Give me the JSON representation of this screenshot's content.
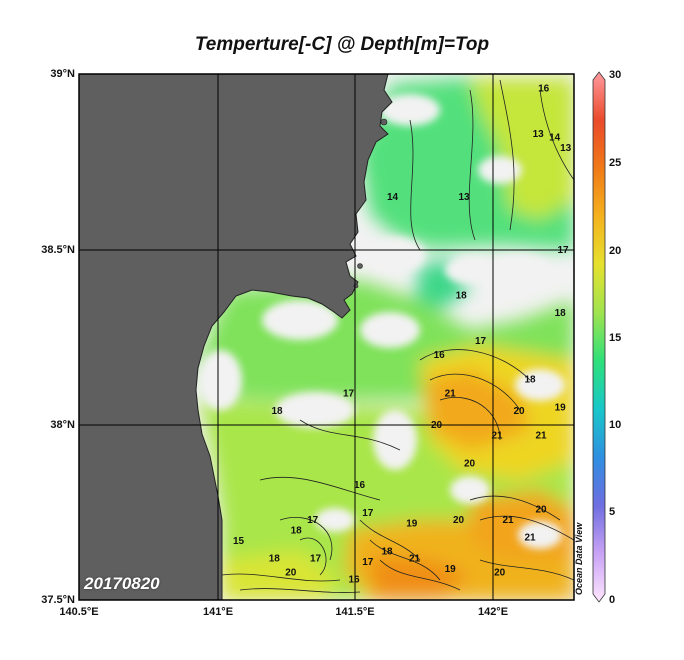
{
  "title": "Temperture[-C] @ Depth[m]=Top",
  "date_label": "20170820",
  "brand": "Ocean Data View",
  "map": {
    "lon_ticks": [
      "140.5°E",
      "141°E",
      "141.5°E",
      "142°E"
    ],
    "lat_ticks": [
      "39°N",
      "38.5°N",
      "38°N",
      "37.5°N"
    ],
    "lon_values": [
      140.5,
      141.0,
      141.5,
      142.0
    ],
    "lat_values": [
      39.0,
      38.5,
      38.0,
      37.5
    ],
    "lon_range": [
      140.5,
      142.3
    ],
    "lat_range": [
      37.5,
      39.0
    ],
    "grid": true,
    "land_color": "#5f5f5f",
    "nodata_color": "#f2f2f2"
  },
  "colorbar": {
    "ticks": [
      "30",
      "25",
      "20",
      "15",
      "10",
      "5",
      "0"
    ],
    "min": 0,
    "max": 30,
    "stops": [
      "#ffe6ff",
      "#c9a3f5",
      "#6f6ee0",
      "#2f8fe0",
      "#18c7c9",
      "#2ee07a",
      "#9fe34f",
      "#e6e12e",
      "#f4b21e",
      "#f07a18",
      "#ea4a2a",
      "#ff9aa0"
    ]
  },
  "contour_labels": [
    {
      "text": "16",
      "lon": 142.19,
      "lat": 38.95
    },
    {
      "text": "13",
      "lon": 142.17,
      "lat": 38.82
    },
    {
      "text": "14",
      "lon": 142.23,
      "lat": 38.81
    },
    {
      "text": "13",
      "lon": 142.27,
      "lat": 38.78
    },
    {
      "text": "14",
      "lon": 141.64,
      "lat": 38.64
    },
    {
      "text": "13",
      "lon": 141.9,
      "lat": 38.64
    },
    {
      "text": "17",
      "lon": 142.26,
      "lat": 38.49
    },
    {
      "text": "18",
      "lon": 141.89,
      "lat": 38.36
    },
    {
      "text": "18",
      "lon": 142.25,
      "lat": 38.31
    },
    {
      "text": "16",
      "lon": 141.81,
      "lat": 38.19
    },
    {
      "text": "17",
      "lon": 141.96,
      "lat": 38.23
    },
    {
      "text": "18",
      "lon": 142.14,
      "lat": 38.12
    },
    {
      "text": "19",
      "lon": 142.25,
      "lat": 38.04
    },
    {
      "text": "20",
      "lon": 142.1,
      "lat": 38.03
    },
    {
      "text": "21",
      "lon": 141.85,
      "lat": 38.08
    },
    {
      "text": "20",
      "lon": 141.8,
      "lat": 37.99
    },
    {
      "text": "21",
      "lon": 142.02,
      "lat": 37.96
    },
    {
      "text": "21",
      "lon": 142.18,
      "lat": 37.96
    },
    {
      "text": "17",
      "lon": 141.48,
      "lat": 38.08
    },
    {
      "text": "18",
      "lon": 141.22,
      "lat": 38.03
    },
    {
      "text": "20",
      "lon": 141.92,
      "lat": 37.88
    },
    {
      "text": "16",
      "lon": 141.52,
      "lat": 37.82
    },
    {
      "text": "17",
      "lon": 141.35,
      "lat": 37.72
    },
    {
      "text": "18",
      "lon": 141.29,
      "lat": 37.69
    },
    {
      "text": "15",
      "lon": 141.08,
      "lat": 37.66
    },
    {
      "text": "17",
      "lon": 141.55,
      "lat": 37.74
    },
    {
      "text": "19",
      "lon": 141.71,
      "lat": 37.71
    },
    {
      "text": "20",
      "lon": 141.88,
      "lat": 37.72
    },
    {
      "text": "21",
      "lon": 142.06,
      "lat": 37.72
    },
    {
      "text": "21",
      "lon": 142.14,
      "lat": 37.67
    },
    {
      "text": "20",
      "lon": 142.18,
      "lat": 37.75
    },
    {
      "text": "19",
      "lon": 141.85,
      "lat": 37.58
    },
    {
      "text": "18",
      "lon": 141.62,
      "lat": 37.63
    },
    {
      "text": "17",
      "lon": 141.55,
      "lat": 37.6
    },
    {
      "text": "21",
      "lon": 141.72,
      "lat": 37.61
    },
    {
      "text": "20",
      "lon": 142.03,
      "lat": 37.57
    },
    {
      "text": "18",
      "lon": 141.21,
      "lat": 37.61
    },
    {
      "text": "17",
      "lon": 141.36,
      "lat": 37.61
    },
    {
      "text": "20",
      "lon": 141.27,
      "lat": 37.57
    },
    {
      "text": "16",
      "lon": 141.5,
      "lat": 37.55
    }
  ]
}
